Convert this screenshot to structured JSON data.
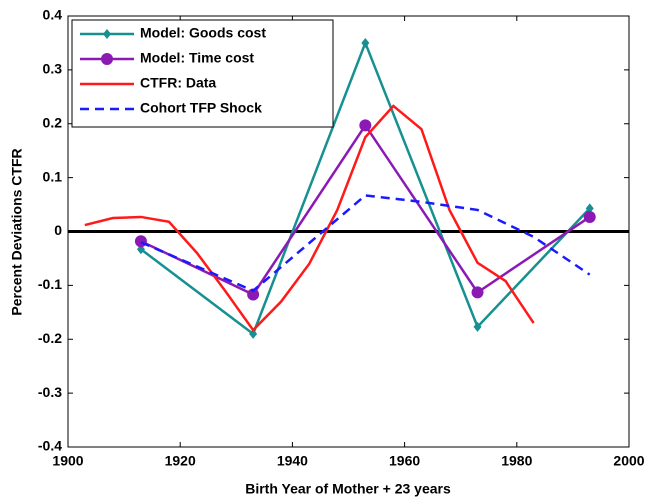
{
  "chart_data": {
    "type": "line",
    "xlabel": "Birth Year of Mother + 23 years",
    "ylabel": "Percent Deviations CTFR",
    "xlim": [
      1900,
      2000
    ],
    "xticks": [
      1900,
      1920,
      1940,
      1960,
      1980,
      2000
    ],
    "ylim": [
      -0.4,
      0.4
    ],
    "yticks": [
      -0.4,
      -0.3,
      -0.2,
      -0.1,
      0,
      0.1,
      0.2,
      0.3,
      0.4
    ],
    "hline": 0,
    "legend": "upper left",
    "series": [
      {
        "name": "Model: Goods cost",
        "color": "#169090",
        "marker": "diamond",
        "dash": false,
        "x": [
          1913,
          1933,
          1953,
          1973,
          1993
        ],
        "values": [
          -0.033,
          -0.19,
          0.35,
          -0.177,
          0.043
        ]
      },
      {
        "name": "Model: Time cost",
        "color": "#8b1ab5",
        "marker": "circle",
        "dash": false,
        "x": [
          1913,
          1933,
          1953,
          1973,
          1993
        ],
        "values": [
          -0.018,
          -0.117,
          0.197,
          -0.113,
          0.027
        ]
      },
      {
        "name": "CTFR: Data",
        "color": "#ff1a1a",
        "marker": "none",
        "dash": false,
        "x": [
          1903,
          1908,
          1913,
          1918,
          1923,
          1928,
          1933,
          1938,
          1943,
          1948,
          1953,
          1958,
          1963,
          1968,
          1973,
          1978,
          1983
        ],
        "values": [
          0.012,
          0.025,
          0.027,
          0.018,
          -0.04,
          -0.11,
          -0.183,
          -0.13,
          -0.06,
          0.04,
          0.175,
          0.233,
          0.19,
          0.04,
          -0.058,
          -0.092,
          -0.17
        ]
      },
      {
        "name": "Cohort TFP Shock",
        "color": "#1a1aff",
        "marker": "none",
        "dash": true,
        "x": [
          1913,
          1933,
          1953,
          1963,
          1973,
          1983,
          1993
        ],
        "values": [
          -0.02,
          -0.11,
          0.067,
          0.055,
          0.04,
          -0.01,
          -0.08
        ]
      }
    ]
  }
}
